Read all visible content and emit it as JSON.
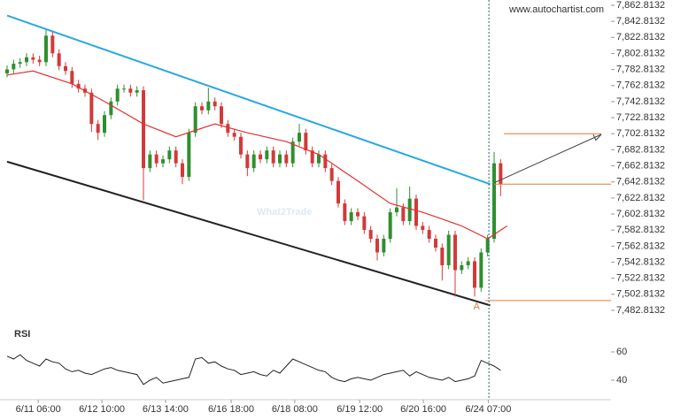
{
  "chart_data": {
    "type": "candlestick",
    "watermark": "www.autochartist.com",
    "brand": "What2Trade",
    "up_color": "#2f8f2f",
    "down_color": "#d23a3a",
    "xlim": [
      0,
      93
    ],
    "xticks": [
      {
        "value": 4.8,
        "label": "6/11 06:00"
      },
      {
        "value": 14.6,
        "label": "6/12 10:00"
      },
      {
        "value": 24.4,
        "label": "6/13 14:00"
      },
      {
        "value": 34.5,
        "label": "6/16 18:00"
      },
      {
        "value": 44.3,
        "label": "6/18 08:00"
      },
      {
        "value": 54.3,
        "label": "6/19 12:00"
      },
      {
        "value": 64.1,
        "label": "6/20 16:00"
      },
      {
        "value": 74.1,
        "label": "6/24 07:00"
      }
    ],
    "ylim": [
      7476.2,
      7869.4
    ],
    "yticks": [
      {
        "value": 7862.8132,
        "label": "7,862.8132"
      },
      {
        "value": 7842.8132,
        "label": "7,842.8132"
      },
      {
        "value": 7822.8132,
        "label": "7,822.8132"
      },
      {
        "value": 7802.8132,
        "label": "7,802.8132"
      },
      {
        "value": 7782.8132,
        "label": "7,782.8132"
      },
      {
        "value": 7762.8132,
        "label": "7,762.8132"
      },
      {
        "value": 7742.8132,
        "label": "7,742.8132"
      },
      {
        "value": 7722.8132,
        "label": "7,722.8132"
      },
      {
        "value": 7702.8132,
        "label": "7,702.8132"
      },
      {
        "value": 7682.8132,
        "label": "7,682.8132"
      },
      {
        "value": 7662.8132,
        "label": "7,662.8132"
      },
      {
        "value": 7642.8132,
        "label": "7,642.8132"
      },
      {
        "value": 7622.8132,
        "label": "7,622.8132"
      },
      {
        "value": 7602.8132,
        "label": "7,602.8132"
      },
      {
        "value": 7582.8132,
        "label": "7,582.8132"
      },
      {
        "value": 7562.8132,
        "label": "7,562.8132"
      },
      {
        "value": 7542.8132,
        "label": "7,542.8132"
      },
      {
        "value": 7522.8132,
        "label": "7,522.8132"
      },
      {
        "value": 7502.8132,
        "label": "7,502.8132"
      },
      {
        "value": 7482.8132,
        "label": "7,482.8132"
      }
    ],
    "candles": [
      [
        7778,
        7788,
        7773,
        7783
      ],
      [
        7783,
        7795,
        7778,
        7790
      ],
      [
        7790,
        7797,
        7785,
        7792
      ],
      [
        7792,
        7803,
        7787,
        7798
      ],
      [
        7798,
        7803,
        7790,
        7795
      ],
      [
        7795,
        7800,
        7787,
        7792
      ],
      [
        7792,
        7832,
        7787,
        7825
      ],
      [
        7825,
        7830,
        7798,
        7803
      ],
      [
        7803,
        7808,
        7782,
        7787
      ],
      [
        7787,
        7792,
        7776,
        7781
      ],
      [
        7781,
        7786,
        7760,
        7765
      ],
      [
        7765,
        7770,
        7754,
        7759
      ],
      [
        7759,
        7764,
        7749,
        7754
      ],
      [
        7754,
        7759,
        7705,
        7715
      ],
      [
        7715,
        7720,
        7695,
        7704
      ],
      [
        7704,
        7731,
        7699,
        7726
      ],
      [
        7726,
        7748,
        7721,
        7743
      ],
      [
        7743,
        7764,
        7738,
        7759
      ],
      [
        7759,
        7764,
        7754,
        7759
      ],
      [
        7759,
        7764,
        7749,
        7754
      ],
      [
        7754,
        7762,
        7749,
        7757
      ],
      [
        7757,
        7762,
        7620,
        7660
      ],
      [
        7660,
        7682,
        7655,
        7677
      ],
      [
        7677,
        7682,
        7661,
        7666
      ],
      [
        7666,
        7676,
        7661,
        7671
      ],
      [
        7671,
        7687,
        7666,
        7682
      ],
      [
        7682,
        7687,
        7661,
        7666
      ],
      [
        7666,
        7671,
        7640,
        7649
      ],
      [
        7649,
        7709,
        7644,
        7704
      ],
      [
        7704,
        7742,
        7699,
        7737
      ],
      [
        7737,
        7742,
        7727,
        7732
      ],
      [
        7732,
        7760,
        7727,
        7743
      ],
      [
        7743,
        7748,
        7732,
        7737
      ],
      [
        7737,
        7742,
        7710,
        7715
      ],
      [
        7715,
        7720,
        7699,
        7704
      ],
      [
        7704,
        7709,
        7694,
        7699
      ],
      [
        7699,
        7704,
        7672,
        7677
      ],
      [
        7677,
        7682,
        7650,
        7660
      ],
      [
        7660,
        7682,
        7655,
        7677
      ],
      [
        7677,
        7682,
        7666,
        7671
      ],
      [
        7671,
        7687,
        7666,
        7682
      ],
      [
        7682,
        7687,
        7661,
        7666
      ],
      [
        7666,
        7682,
        7661,
        7677
      ],
      [
        7677,
        7682,
        7661,
        7666
      ],
      [
        7666,
        7698,
        7661,
        7693
      ],
      [
        7693,
        7715,
        7688,
        7704
      ],
      [
        7704,
        7709,
        7677,
        7682
      ],
      [
        7682,
        7687,
        7661,
        7666
      ],
      [
        7666,
        7682,
        7661,
        7677
      ],
      [
        7677,
        7682,
        7655,
        7660
      ],
      [
        7660,
        7665,
        7639,
        7644
      ],
      [
        7644,
        7649,
        7611,
        7616
      ],
      [
        7616,
        7621,
        7589,
        7594
      ],
      [
        7594,
        7610,
        7589,
        7605
      ],
      [
        7605,
        7610,
        7595,
        7600
      ],
      [
        7600,
        7605,
        7578,
        7583
      ],
      [
        7583,
        7588,
        7567,
        7572
      ],
      [
        7572,
        7577,
        7545,
        7555
      ],
      [
        7555,
        7577,
        7550,
        7572
      ],
      [
        7572,
        7610,
        7567,
        7605
      ],
      [
        7605,
        7635,
        7600,
        7611
      ],
      [
        7611,
        7616,
        7589,
        7594
      ],
      [
        7594,
        7637,
        7589,
        7622
      ],
      [
        7622,
        7627,
        7583,
        7588
      ],
      [
        7588,
        7593,
        7578,
        7583
      ],
      [
        7583,
        7588,
        7567,
        7572
      ],
      [
        7572,
        7577,
        7556,
        7561
      ],
      [
        7561,
        7566,
        7520,
        7539
      ],
      [
        7539,
        7582,
        7534,
        7577
      ],
      [
        7577,
        7582,
        7500,
        7533
      ],
      [
        7533,
        7544,
        7528,
        7539
      ],
      [
        7539,
        7549,
        7534,
        7544
      ],
      [
        7544,
        7549,
        7500,
        7511
      ],
      [
        7511,
        7560,
        7506,
        7555
      ],
      [
        7555,
        7577,
        7550,
        7572
      ],
      [
        7572,
        7680,
        7567,
        7666
      ],
      [
        7666,
        7671,
        7625,
        7640
      ]
    ],
    "ma": {
      "color": "#e53030",
      "x": [
        0,
        4,
        10,
        15,
        21,
        26,
        32,
        37,
        43,
        48,
        54,
        59,
        64,
        70,
        74,
        77
      ],
      "values": [
        7776,
        7781,
        7765,
        7743,
        7715,
        7699,
        7715,
        7704,
        7693,
        7677,
        7644,
        7616,
        7605,
        7588,
        7572,
        7588
      ]
    },
    "trendlines": [
      {
        "color": "#29a8e0",
        "x": [
          0,
          74.4
        ],
        "values": [
          7850,
          7640
        ]
      },
      {
        "color": "#222222",
        "x": [
          0,
          74.4
        ],
        "values": [
          7668,
          7489
        ]
      }
    ],
    "levels": [
      {
        "color": "#e07b39",
        "x": [
          76.5,
          91.5
        ],
        "value": 7702.8
      },
      {
        "color": "#e07b39",
        "x": [
          75,
          93
        ],
        "value": 7640
      },
      {
        "color": "#e07b39",
        "x": [
          73.6,
          93
        ],
        "value": 7495
      }
    ],
    "projection": {
      "color": "#444444",
      "x": [
        75.1,
        91.5
      ],
      "values": [
        7642,
        7702
      ]
    },
    "vline": {
      "color": "#1d6b6b",
      "x": 74.2
    },
    "pattern_label": {
      "text": "A",
      "x": 72.3,
      "value": 7487
    },
    "rsi": {
      "title": "RSI",
      "color": "#222222",
      "ylim": [
        27.5,
        77.5
      ],
      "yticks": [
        40,
        60
      ],
      "values": [
        57,
        55,
        58,
        54,
        52,
        50,
        55,
        53,
        52,
        48,
        46,
        47,
        45,
        44,
        46,
        48,
        49,
        47,
        46,
        45,
        44,
        37,
        40,
        42,
        38,
        39,
        40,
        41,
        42,
        55,
        56,
        52,
        53,
        50,
        48,
        47,
        44,
        45,
        46,
        44,
        43,
        47,
        45,
        50,
        55,
        53,
        51,
        49,
        47,
        46,
        42,
        40,
        39,
        41,
        42,
        41,
        40,
        42,
        44,
        45,
        46,
        47,
        43,
        46,
        44,
        42,
        41,
        40,
        42,
        39,
        40,
        41,
        43,
        54,
        52,
        50,
        47
      ]
    }
  }
}
